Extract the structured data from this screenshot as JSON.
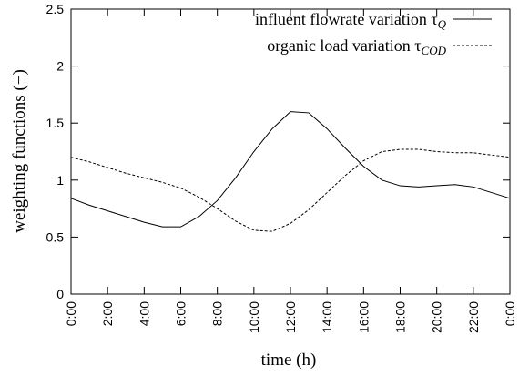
{
  "chart_data": {
    "type": "line",
    "x_label": "time (h)",
    "y_label": "weighting functions (−)",
    "x": [
      0,
      1,
      2,
      3,
      4,
      5,
      6,
      7,
      8,
      9,
      10,
      11,
      12,
      13,
      14,
      15,
      16,
      17,
      18,
      19,
      20,
      21,
      22,
      23,
      24
    ],
    "series": [
      {
        "name": "influent flowrate variation τQ",
        "color": "#000000",
        "dash": "solid",
        "values": [
          0.84,
          0.78,
          0.73,
          0.68,
          0.63,
          0.59,
          0.59,
          0.68,
          0.82,
          1.02,
          1.25,
          1.45,
          1.6,
          1.59,
          1.45,
          1.28,
          1.12,
          1.0,
          0.95,
          0.94,
          0.95,
          0.96,
          0.94,
          0.89,
          0.84
        ]
      },
      {
        "name": "organic load variation τCOD",
        "color": "#000000",
        "dash": "dashed",
        "values": [
          1.2,
          1.16,
          1.11,
          1.06,
          1.02,
          0.98,
          0.93,
          0.85,
          0.75,
          0.64,
          0.56,
          0.55,
          0.62,
          0.74,
          0.89,
          1.04,
          1.17,
          1.25,
          1.27,
          1.27,
          1.25,
          1.24,
          1.24,
          1.22,
          1.2
        ]
      }
    ],
    "xlim": [
      0,
      24
    ],
    "xticks": [
      {
        "value": 0,
        "label": "0:00"
      },
      {
        "value": 2,
        "label": "2:00"
      },
      {
        "value": 4,
        "label": "4:00"
      },
      {
        "value": 6,
        "label": "6:00"
      },
      {
        "value": 8,
        "label": "8:00"
      },
      {
        "value": 10,
        "label": "10:00"
      },
      {
        "value": 12,
        "label": "12:00"
      },
      {
        "value": 14,
        "label": "14:00"
      },
      {
        "value": 16,
        "label": "16:00"
      },
      {
        "value": 18,
        "label": "18:00"
      },
      {
        "value": 20,
        "label": "20:00"
      },
      {
        "value": 22,
        "label": "22:00"
      },
      {
        "value": 24,
        "label": "0:00"
      }
    ],
    "ylim": [
      0,
      2.5
    ],
    "yticks": [
      0,
      0.5,
      1,
      1.5,
      2,
      2.5
    ],
    "grid": false,
    "legend": "top-right"
  }
}
